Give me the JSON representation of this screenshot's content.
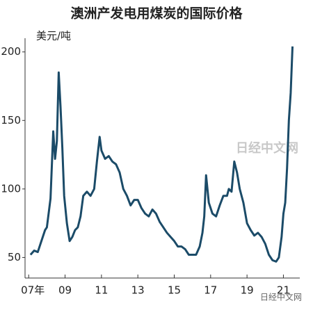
{
  "chart_data": {
    "type": "line",
    "title": "澳洲产发电用煤炭的国际价格",
    "y_label": "美元/吨",
    "watermark": "日经中文网",
    "source_mark": "日经中文网",
    "x": [
      7.1,
      7.3,
      7.5,
      7.7,
      7.9,
      8.0,
      8.2,
      8.35,
      8.45,
      8.55,
      8.65,
      8.75,
      8.85,
      8.95,
      9.1,
      9.25,
      9.4,
      9.55,
      9.7,
      9.85,
      10.0,
      10.2,
      10.4,
      10.6,
      10.75,
      10.9,
      11.0,
      11.2,
      11.4,
      11.6,
      11.8,
      12.0,
      12.2,
      12.4,
      12.6,
      12.8,
      13.0,
      13.2,
      13.4,
      13.6,
      13.8,
      14.0,
      14.2,
      14.4,
      14.6,
      14.8,
      15.0,
      15.2,
      15.4,
      15.6,
      15.8,
      16.0,
      16.2,
      16.4,
      16.55,
      16.65,
      16.75,
      16.9,
      17.1,
      17.3,
      17.5,
      17.7,
      17.9,
      18.0,
      18.15,
      18.3,
      18.45,
      18.6,
      18.8,
      19.0,
      19.2,
      19.4,
      19.6,
      19.8,
      20.0,
      20.2,
      20.4,
      20.6,
      20.75,
      20.9,
      21.0,
      21.1,
      21.2,
      21.3,
      21.4,
      21.5
    ],
    "values": [
      52,
      55,
      54,
      62,
      70,
      72,
      93,
      142,
      122,
      135,
      185,
      160,
      130,
      95,
      75,
      62,
      65,
      70,
      72,
      80,
      95,
      98,
      95,
      100,
      120,
      138,
      128,
      122,
      124,
      120,
      118,
      112,
      100,
      95,
      88,
      92,
      92,
      86,
      82,
      80,
      85,
      82,
      76,
      72,
      68,
      65,
      62,
      58,
      58,
      56,
      52,
      52,
      52,
      58,
      68,
      80,
      110,
      90,
      82,
      80,
      88,
      95,
      95,
      100,
      98,
      120,
      112,
      100,
      90,
      75,
      70,
      66,
      68,
      65,
      60,
      52,
      48,
      47,
      50,
      65,
      82,
      90,
      115,
      150,
      170,
      204
    ],
    "color": "#1b4b68",
    "xlim": [
      6.8,
      21.9
    ],
    "ylim": [
      35,
      210
    ],
    "xticks": [
      {
        "value": 7,
        "label": "07年"
      },
      {
        "value": 9,
        "label": "09"
      },
      {
        "value": 11,
        "label": "11"
      },
      {
        "value": 13,
        "label": "13"
      },
      {
        "value": 15,
        "label": "15"
      },
      {
        "value": 17,
        "label": "17"
      },
      {
        "value": 19,
        "label": "19"
      },
      {
        "value": 21,
        "label": "21"
      }
    ],
    "yticks": [
      50,
      100,
      150,
      200
    ]
  }
}
